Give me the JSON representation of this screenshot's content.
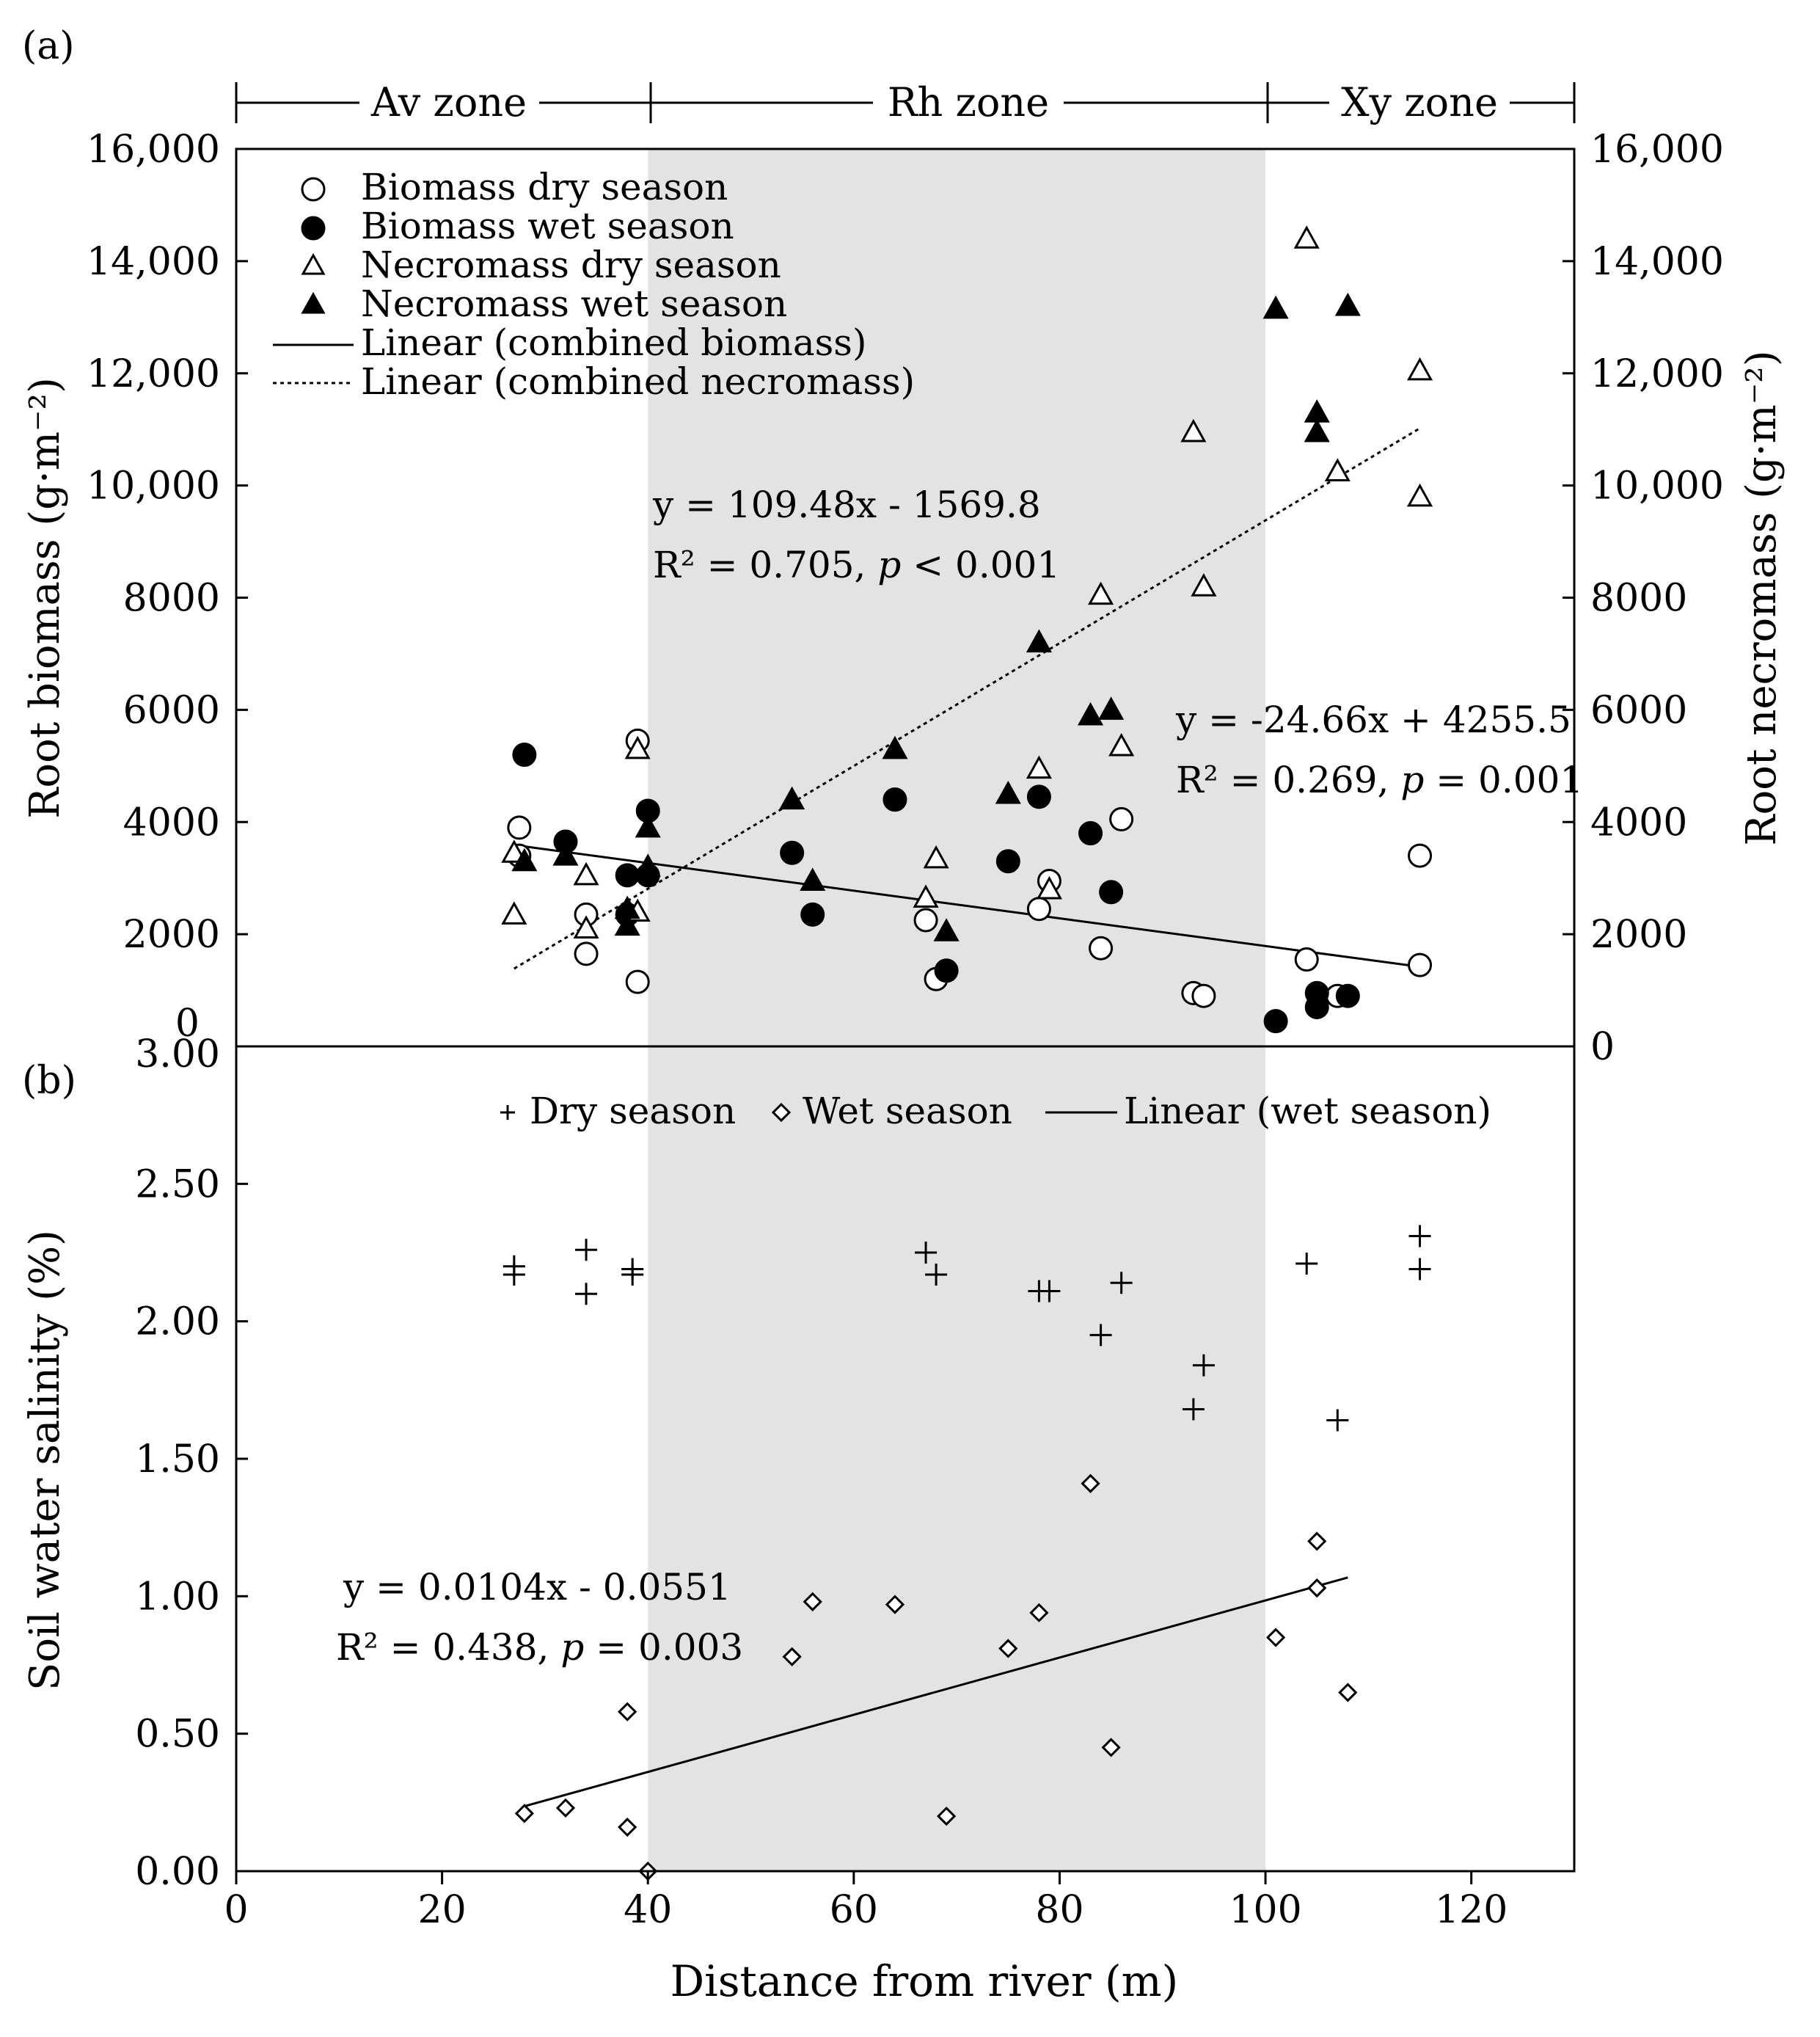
{
  "chart_data": [
    {
      "panel_label": "(a)",
      "type": "scatter",
      "xlim": [
        0,
        130
      ],
      "ylim": [
        0,
        16000
      ],
      "x_ticks": [
        0,
        20,
        40,
        60,
        80,
        100,
        120
      ],
      "y_ticks": [
        0,
        2000,
        4000,
        6000,
        8000,
        10000,
        12000,
        14000,
        16000
      ],
      "y_tick_labels": [
        "0",
        "2000",
        "4000",
        "6000",
        "8000",
        "10,000",
        "12,000",
        "14,000",
        "16,000"
      ],
      "ylabel": "Root biomass (g·m⁻²)",
      "ylabel_right": "Root necromass (g·m⁻²)",
      "zones": [
        {
          "label": "Av zone",
          "x0": 0,
          "x1": 40
        },
        {
          "label": "Rh zone",
          "x0": 40,
          "x1": 100
        },
        {
          "label": "Xy zone",
          "x0": 100,
          "x1": 130
        }
      ],
      "shaded_zone": [
        40,
        100
      ],
      "series": [
        {
          "name": "Biomass dry season",
          "marker": "circle-open",
          "points": [
            [
              27.5,
              3900
            ],
            [
              27.5,
              3400
            ],
            [
              34,
              2350
            ],
            [
              34,
              1650
            ],
            [
              39,
              5450
            ],
            [
              39,
              1150
            ],
            [
              67,
              2250
            ],
            [
              68,
              1200
            ],
            [
              78,
              2450
            ],
            [
              79,
              2950
            ],
            [
              84,
              1750
            ],
            [
              86,
              4050
            ],
            [
              93,
              950
            ],
            [
              94,
              900
            ],
            [
              104,
              1550
            ],
            [
              107,
              900
            ],
            [
              115,
              3400
            ],
            [
              115,
              1450
            ]
          ]
        },
        {
          "name": "Biomass wet season",
          "marker": "circle-filled",
          "points": [
            [
              28,
              5200
            ],
            [
              32,
              3650
            ],
            [
              38,
              3050
            ],
            [
              38,
              2350
            ],
            [
              40,
              4200
            ],
            [
              40,
              3050
            ],
            [
              54,
              3450
            ],
            [
              56,
              2350
            ],
            [
              64,
              4400
            ],
            [
              69,
              1350
            ],
            [
              75,
              3300
            ],
            [
              78,
              4450
            ],
            [
              83,
              3800
            ],
            [
              85,
              2750
            ],
            [
              101,
              450
            ],
            [
              105,
              950
            ],
            [
              105,
              700
            ],
            [
              108,
              900
            ]
          ]
        },
        {
          "name": "Necromass dry season",
          "marker": "triangle-open",
          "points": [
            [
              27,
              3450
            ],
            [
              27,
              2350
            ],
            [
              34,
              3050
            ],
            [
              34,
              2100
            ],
            [
              39,
              5300
            ],
            [
              39,
              2400
            ],
            [
              67,
              2650
            ],
            [
              68,
              3350
            ],
            [
              78,
              4950
            ],
            [
              79,
              2800
            ],
            [
              84,
              8050
            ],
            [
              86,
              5350
            ],
            [
              93,
              10950
            ],
            [
              94,
              8200
            ],
            [
              104,
              14400
            ],
            [
              107,
              10250
            ],
            [
              115,
              12050
            ],
            [
              115,
              9800
            ]
          ]
        },
        {
          "name": "Necromass wet season",
          "marker": "triangle-filled",
          "points": [
            [
              28,
              3300
            ],
            [
              32,
              3400
            ],
            [
              38,
              2450
            ],
            [
              38,
              2150
            ],
            [
              40,
              3900
            ],
            [
              40,
              3200
            ],
            [
              54,
              4400
            ],
            [
              56,
              2950
            ],
            [
              64,
              5300
            ],
            [
              69,
              2050
            ],
            [
              75,
              4500
            ],
            [
              78,
              7200
            ],
            [
              83,
              5900
            ],
            [
              85,
              6000
            ],
            [
              101,
              13150
            ],
            [
              105,
              11300
            ],
            [
              105,
              10950
            ],
            [
              108,
              13200
            ]
          ]
        }
      ],
      "trendlines": [
        {
          "name": "Linear (combined biomass)",
          "style": "solid",
          "slope": -24.66,
          "intercept": 4255.5,
          "x_range": [
            27,
            115
          ]
        },
        {
          "name": "Linear (combined necromass)",
          "style": "dotted",
          "slope": 109.48,
          "intercept": -1569.8,
          "x_range": [
            27,
            115
          ]
        }
      ],
      "legend": {
        "placement": "top-left",
        "entries": [
          "Biomass dry season",
          "Biomass wet season",
          "Necromass dry season",
          "Necromass wet season",
          "Linear (combined biomass)",
          "Linear (combined necromass)"
        ]
      },
      "annotations": {
        "necromass_eq": "y = 109.48x - 1569.8",
        "necromass_r2": "R² = 0.705, ",
        "necromass_p": "p",
        "necromass_p_value": " < 0.001",
        "biomass_eq": "y = -24.66x + 4255.5",
        "biomass_r2": "R² = 0.269, ",
        "biomass_p": "p",
        "biomass_p_value": " = 0.001"
      }
    },
    {
      "panel_label": "(b)",
      "type": "scatter",
      "xlim": [
        0,
        130
      ],
      "ylim": [
        0,
        3
      ],
      "x_ticks": [
        0,
        20,
        40,
        60,
        80,
        100,
        120
      ],
      "x_tick_labels": [
        "0",
        "20",
        "40",
        "60",
        "80",
        "100",
        "120"
      ],
      "y_ticks": [
        0,
        0.5,
        1.0,
        1.5,
        2.0,
        2.5,
        3.0
      ],
      "y_tick_labels": [
        "0.00",
        "0.50",
        "1.00",
        "1.50",
        "2.00",
        "2.50",
        "3.00"
      ],
      "xlabel": "Distance from river (m)",
      "ylabel": "Soil water salinity (%)",
      "series": [
        {
          "name": "Dry season",
          "marker": "plus",
          "points": [
            [
              27,
              2.2
            ],
            [
              27,
              2.17
            ],
            [
              34,
              2.26
            ],
            [
              34,
              2.1
            ],
            [
              38.5,
              2.19
            ],
            [
              38.5,
              2.17
            ],
            [
              67,
              2.25
            ],
            [
              68,
              2.17
            ],
            [
              78,
              2.11
            ],
            [
              79,
              2.11
            ],
            [
              84,
              1.95
            ],
            [
              86,
              2.14
            ],
            [
              93,
              1.68
            ],
            [
              94,
              1.84
            ],
            [
              104,
              2.21
            ],
            [
              107,
              1.64
            ],
            [
              115,
              2.31
            ],
            [
              115,
              2.19
            ]
          ]
        },
        {
          "name": "Wet season",
          "marker": "diamond-open",
          "points": [
            [
              28,
              0.21
            ],
            [
              32,
              0.23
            ],
            [
              38,
              0.58
            ],
            [
              38,
              0.16
            ],
            [
              40,
              0.0
            ],
            [
              54,
              0.78
            ],
            [
              56,
              0.98
            ],
            [
              64,
              0.97
            ],
            [
              69,
              0.2
            ],
            [
              75,
              0.81
            ],
            [
              78,
              0.94
            ],
            [
              83,
              1.41
            ],
            [
              85,
              0.45
            ],
            [
              101,
              0.85
            ],
            [
              105,
              1.2
            ],
            [
              105,
              1.03
            ],
            [
              108,
              0.65
            ]
          ]
        }
      ],
      "trendlines": [
        {
          "name": "Linear (wet season)",
          "style": "solid",
          "slope": 0.0104,
          "intercept": -0.0551,
          "x_range": [
            28,
            108
          ]
        }
      ],
      "legend": {
        "placement": "top",
        "entries": [
          "Dry season",
          "Wet season",
          "Linear (wet season)"
        ]
      },
      "annotations": {
        "eq": "y = 0.0104x - 0.0551",
        "r2": "R² = 0.438, ",
        "p": "p",
        "p_value": " = 0.003"
      }
    }
  ]
}
